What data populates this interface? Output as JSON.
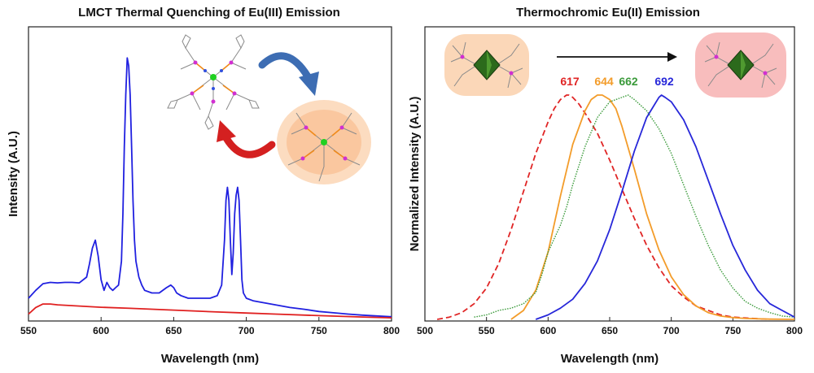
{
  "chart_data": [
    {
      "type": "line",
      "title": "LMCT Thermal Quenching of Eu(III) Emission",
      "xlabel": "Wavelength (nm)",
      "ylabel": "Intensity (A.U.)",
      "xlim": [
        550,
        800
      ],
      "ylim": [
        0,
        1
      ],
      "xticks": [
        "550",
        "600",
        "650",
        "700",
        "750",
        "800"
      ],
      "yticks_shown": false,
      "grid": false,
      "series": [
        {
          "color": "#2020e0",
          "x": [
            550,
            555,
            560,
            565,
            570,
            575,
            580,
            585,
            590,
            592,
            594,
            596,
            598,
            600,
            602,
            604,
            606,
            608,
            610,
            612,
            614,
            615,
            616,
            617,
            618,
            619,
            620,
            621,
            622,
            623,
            624,
            626,
            628,
            630,
            635,
            640,
            645,
            648,
            650,
            652,
            655,
            660,
            665,
            670,
            675,
            680,
            683,
            685,
            686,
            687,
            688,
            689,
            690,
            691,
            692,
            693,
            694,
            695,
            696,
            697,
            698,
            700,
            705,
            710,
            720,
            730,
            740,
            750,
            760,
            770,
            780,
            790,
            800
          ],
          "y": [
            0.08,
            0.11,
            0.135,
            0.14,
            0.138,
            0.14,
            0.14,
            0.138,
            0.16,
            0.21,
            0.27,
            0.3,
            0.24,
            0.15,
            0.11,
            0.14,
            0.12,
            0.11,
            0.12,
            0.13,
            0.22,
            0.4,
            0.65,
            0.85,
            0.99,
            0.96,
            0.85,
            0.65,
            0.45,
            0.3,
            0.22,
            0.16,
            0.13,
            0.11,
            0.1,
            0.1,
            0.12,
            0.13,
            0.12,
            0.1,
            0.09,
            0.08,
            0.08,
            0.08,
            0.08,
            0.09,
            0.13,
            0.3,
            0.45,
            0.5,
            0.45,
            0.3,
            0.17,
            0.25,
            0.4,
            0.47,
            0.5,
            0.45,
            0.3,
            0.15,
            0.1,
            0.08,
            0.07,
            0.065,
            0.055,
            0.045,
            0.038,
            0.03,
            0.025,
            0.02,
            0.016,
            0.013,
            0.01
          ]
        },
        {
          "color": "#e02020",
          "x": [
            550,
            555,
            560,
            565,
            570,
            580,
            600,
            620,
            650,
            680,
            700,
            720,
            750,
            780,
            800
          ],
          "y": [
            0.02,
            0.045,
            0.058,
            0.058,
            0.055,
            0.052,
            0.046,
            0.042,
            0.035,
            0.028,
            0.024,
            0.02,
            0.014,
            0.009,
            0.006
          ]
        }
      ]
    },
    {
      "type": "line",
      "title": "Thermochromic Eu(II) Emission",
      "xlabel": "Wavelength (nm)",
      "ylabel": "Normalized Intensity (A.U.)",
      "xlim": [
        500,
        800
      ],
      "ylim": [
        0,
        1
      ],
      "xticks": [
        "500",
        "550",
        "600",
        "650",
        "700",
        "750",
        "800"
      ],
      "yticks_shown": false,
      "grid": false,
      "series": [
        {
          "name": "617",
          "color": "#e02525",
          "style": "dashed",
          "x": [
            510,
            520,
            530,
            540,
            550,
            560,
            570,
            580,
            590,
            600,
            605,
            610,
            615,
            617,
            620,
            625,
            630,
            640,
            650,
            660,
            670,
            680,
            690,
            700,
            710,
            720,
            730,
            740,
            750,
            760,
            770,
            780
          ],
          "y": [
            0.0,
            0.01,
            0.03,
            0.07,
            0.14,
            0.25,
            0.4,
            0.57,
            0.74,
            0.88,
            0.94,
            0.98,
            1.0,
            1.0,
            0.99,
            0.96,
            0.92,
            0.83,
            0.71,
            0.58,
            0.45,
            0.33,
            0.23,
            0.15,
            0.1,
            0.06,
            0.04,
            0.02,
            0.01,
            0.006,
            0.003,
            0.0
          ]
        },
        {
          "name": "644",
          "color": "#f39c2a",
          "style": "solid",
          "x": [
            570,
            580,
            590,
            600,
            610,
            620,
            630,
            635,
            640,
            644,
            650,
            655,
            660,
            670,
            680,
            690,
            700,
            710,
            720,
            730,
            740,
            750,
            760,
            780,
            800
          ],
          "y": [
            0.0,
            0.04,
            0.13,
            0.3,
            0.55,
            0.78,
            0.93,
            0.98,
            1.0,
            1.0,
            0.98,
            0.94,
            0.86,
            0.67,
            0.47,
            0.31,
            0.19,
            0.11,
            0.06,
            0.03,
            0.015,
            0.008,
            0.004,
            0.001,
            0.0
          ]
        },
        {
          "name": "662",
          "color": "#3a9a3a",
          "style": "dotted",
          "x": [
            540,
            550,
            560,
            570,
            580,
            590,
            595,
            600,
            605,
            610,
            615,
            620,
            630,
            640,
            650,
            660,
            665,
            670,
            680,
            690,
            700,
            710,
            720,
            730,
            740,
            750,
            760,
            770,
            780,
            790,
            800
          ],
          "y": [
            0.01,
            0.02,
            0.04,
            0.05,
            0.07,
            0.12,
            0.2,
            0.3,
            0.36,
            0.42,
            0.5,
            0.6,
            0.77,
            0.9,
            0.97,
            0.99,
            1.0,
            0.98,
            0.93,
            0.85,
            0.74,
            0.6,
            0.46,
            0.33,
            0.22,
            0.14,
            0.08,
            0.05,
            0.03,
            0.015,
            0.01
          ]
        },
        {
          "name": "692",
          "color": "#2727d9",
          "style": "solid",
          "x": [
            590,
            600,
            610,
            620,
            630,
            640,
            650,
            660,
            670,
            680,
            690,
            692,
            695,
            700,
            710,
            720,
            730,
            740,
            750,
            760,
            770,
            780,
            790,
            800
          ],
          "y": [
            0.0,
            0.02,
            0.05,
            0.09,
            0.16,
            0.26,
            0.4,
            0.57,
            0.75,
            0.9,
            0.99,
            1.0,
            0.99,
            0.97,
            0.89,
            0.77,
            0.62,
            0.47,
            0.33,
            0.22,
            0.13,
            0.07,
            0.04,
            0.01
          ]
        }
      ]
    }
  ]
}
